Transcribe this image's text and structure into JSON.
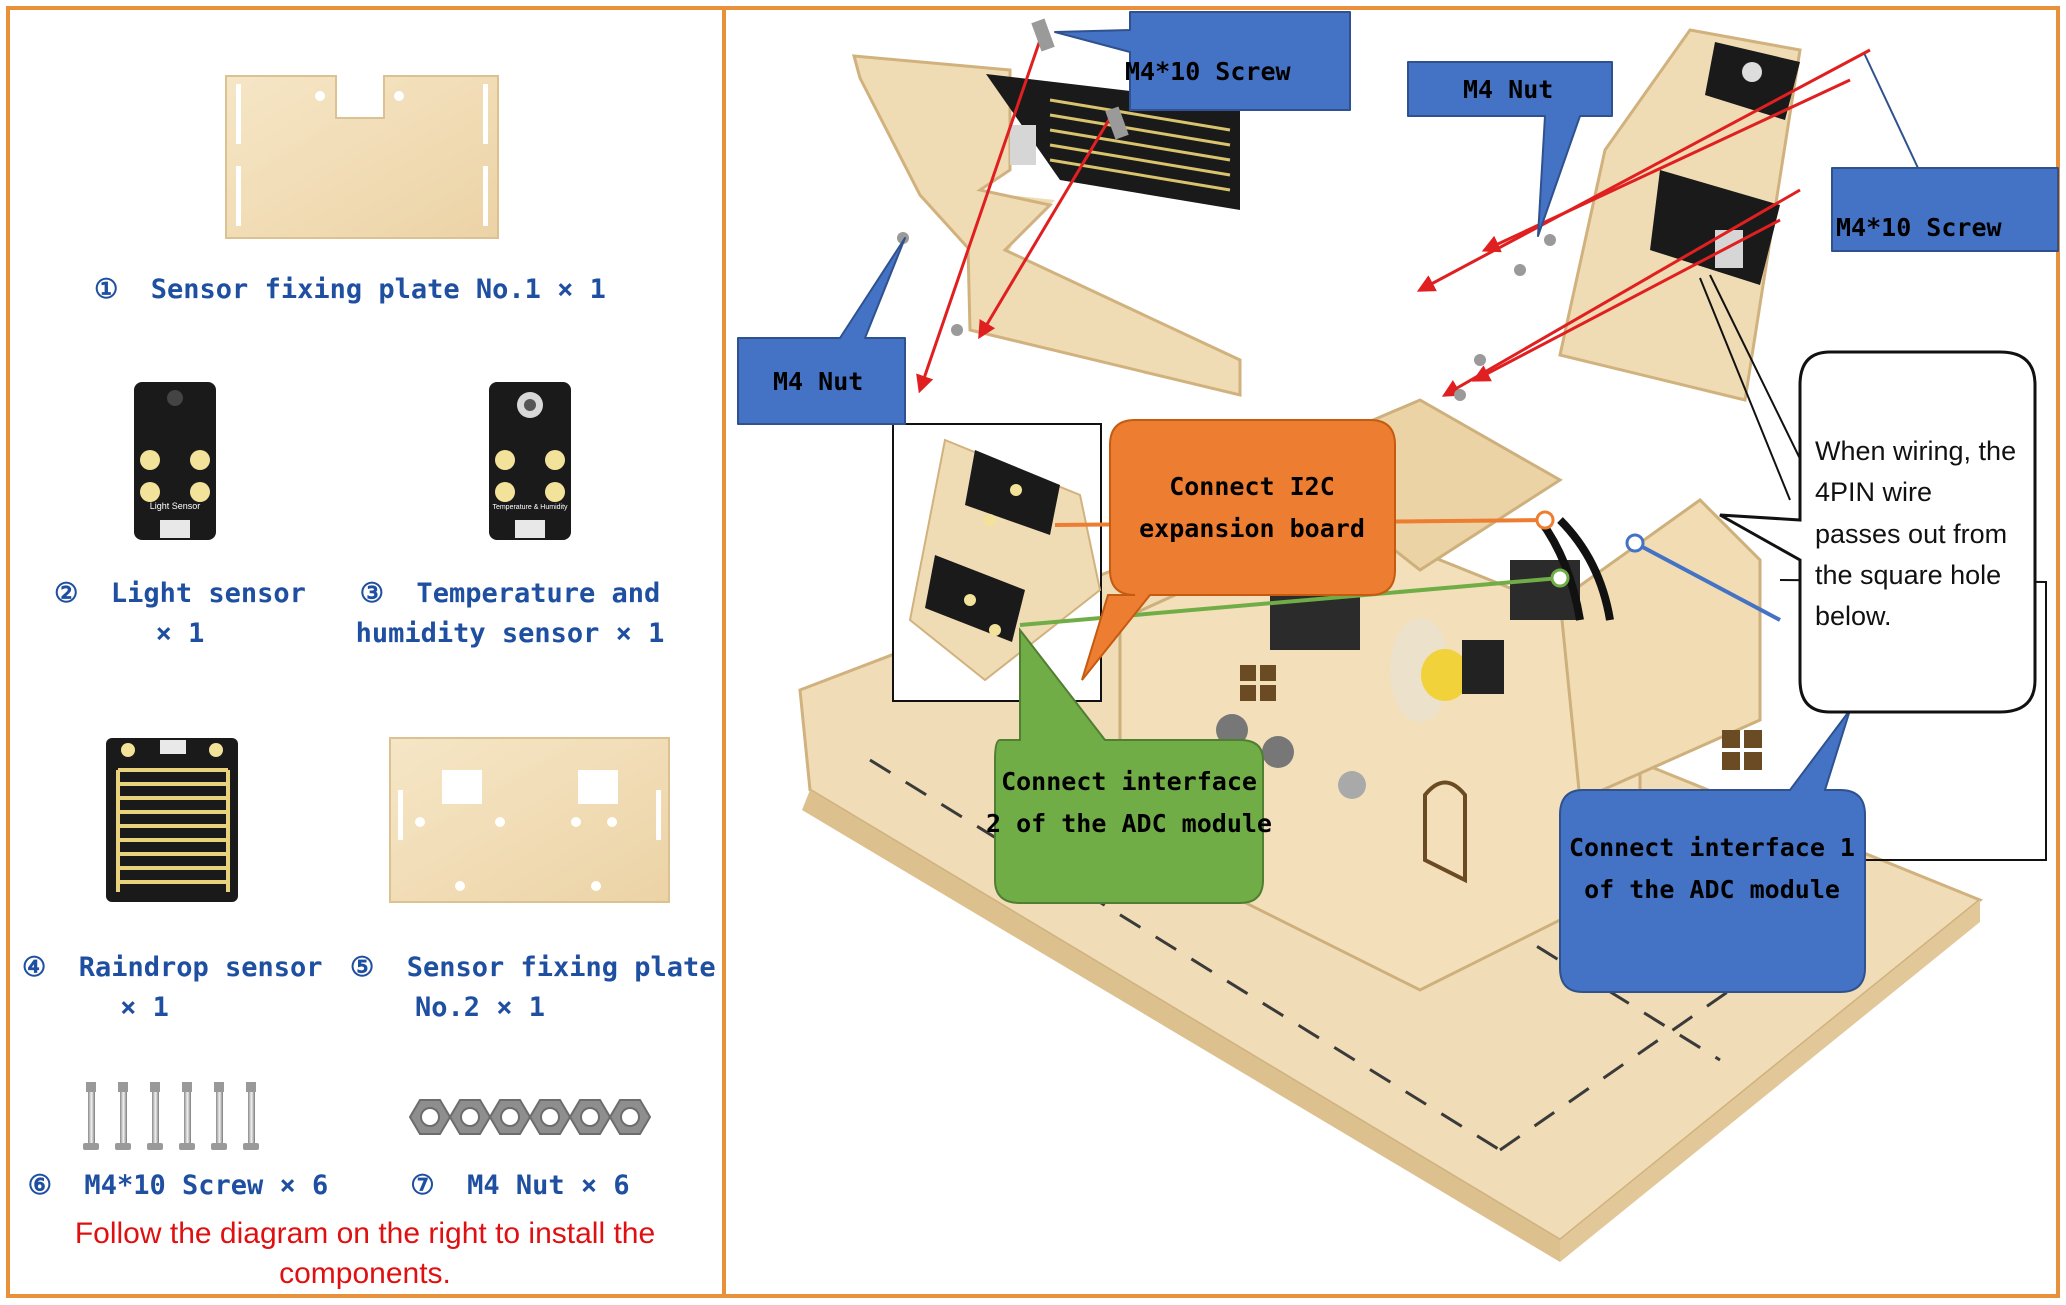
{
  "parts": [
    {
      "num": "①",
      "name": "Sensor fixing plate No.1",
      "qty": "× 1"
    },
    {
      "num": "②",
      "name": "Light sensor",
      "qty": "× 1"
    },
    {
      "num": "③",
      "name": "Temperature and humidity sensor",
      "qty": "× 1"
    },
    {
      "num": "④",
      "name": "Raindrop sensor",
      "qty": "× 1"
    },
    {
      "num": "⑤",
      "name": "Sensor fixing plate No.2",
      "qty": "× 1"
    },
    {
      "num": "⑥",
      "name": "M4*10 Screw",
      "qty": "× 6"
    },
    {
      "num": "⑦",
      "name": "M4 Nut",
      "qty": "× 6"
    }
  ],
  "labels": {
    "part1": "①  Sensor fixing plate No.1 × 1",
    "part2_line1": "②  Light sensor",
    "part2_line2": "× 1",
    "part3_line1": "③  Temperature and",
    "part3_line2": "humidity sensor × 1",
    "part4_line1": "④  Raindrop sensor",
    "part4_line2": "× 1",
    "part5_line1": "⑤  Sensor fixing plate",
    "part5_line2": "No.2 × 1",
    "part6": "⑥  M4*10 Screw × 6",
    "part7": "⑦  M4 Nut × 6",
    "light_sensor_print": "Light Sensor",
    "temp_sensor_print": "Temperature & Humidity"
  },
  "instruction": "Follow the diagram on the right to install the components.",
  "callouts": {
    "screw_top": "M4*10 Screw",
    "nut_left": "M4 Nut",
    "nut_right": "M4 Nut",
    "screw_right": "M4*10 Screw",
    "i2c_line1": "Connect I2C",
    "i2c_line2": "expansion board",
    "adc2_line1": "Connect interface",
    "adc2_line2": "2 of the ADC module",
    "adc1_line1": "Connect interface 1",
    "adc1_line2": "of the ADC module",
    "wiring_line1": "When wiring, the",
    "wiring_line2": "4PIN wire",
    "wiring_line3": "passes out from",
    "wiring_line4": "the square hole",
    "wiring_line5": "below."
  },
  "colors": {
    "frame": "#e8913a",
    "label_blue": "#1f4fa0",
    "callout_blue": "#4472c4",
    "callout_orange": "#ed7d31",
    "callout_green": "#70ad47",
    "wood": "#f1ddb8",
    "wood_edge": "#d9bd8c",
    "board": "#1a1a1a",
    "red_note": "#e01010",
    "arrow_red": "#e02020"
  }
}
